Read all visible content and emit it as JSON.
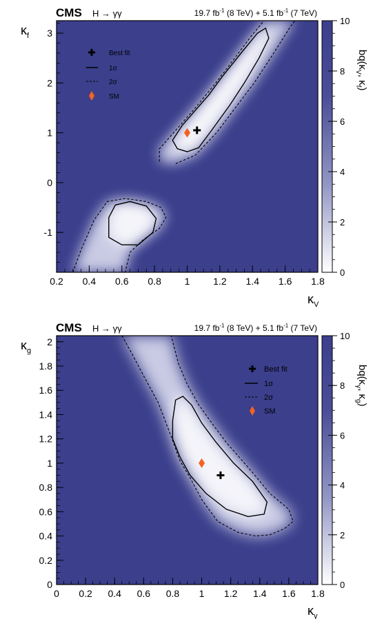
{
  "chart_data": [
    {
      "type": "heatmap",
      "experiment": "CMS",
      "process": "H → γγ",
      "lumi": {
        "a_lumi": "19.7",
        "a_unit": "fb",
        "a_exp": "-1",
        "a_energy": "(8 TeV) +",
        "b_lumi": "5.1",
        "b_unit": "fb",
        "b_exp": "-1",
        "b_energy": "(7 TeV)"
      },
      "xlabel": {
        "base": "κ",
        "sub": "V"
      },
      "ylabel": {
        "base": "κ",
        "sub": "f"
      },
      "zlabel": "bq(κV, κf)",
      "zlabel_parts": {
        "pre": "bq(κ",
        "s1": "V",
        "mid": ", κ",
        "s2": "f",
        "post": ")"
      },
      "xlim": [
        0.2,
        1.8
      ],
      "ylim": [
        -1.8,
        3.25
      ],
      "zlim": [
        0,
        10
      ],
      "xticks": [
        "0.2",
        "0.4",
        "0.6",
        "0.8",
        "1",
        "1.2",
        "1.4",
        "1.6",
        "1.8"
      ],
      "yticks": [
        "-1",
        "0",
        "1",
        "2",
        "3"
      ],
      "zticks": [
        "0",
        "2",
        "4",
        "6",
        "8",
        "10"
      ],
      "best_fit": {
        "x": 1.06,
        "y": 1.05
      },
      "sm": {
        "x": 1.0,
        "y": 1.0
      },
      "legend": {
        "position": "top-left",
        "entries": [
          {
            "label": "Best fit",
            "symbol": "cross"
          },
          {
            "label": "1σ",
            "symbol": "solid"
          },
          {
            "label": "2σ",
            "symbol": "dashed"
          },
          {
            "label": "SM",
            "symbol": "diamond"
          }
        ]
      },
      "contours": {
        "sigma1": [
          [
            [
              1.48,
              3.1
            ],
            [
              1.43,
              3.0
            ],
            [
              1.33,
              2.6
            ],
            [
              1.22,
              2.15
            ],
            [
              1.13,
              1.75
            ],
            [
              1.05,
              1.45
            ],
            [
              0.97,
              1.15
            ],
            [
              0.91,
              0.85
            ],
            [
              0.94,
              0.68
            ],
            [
              1.0,
              0.62
            ],
            [
              1.07,
              0.7
            ],
            [
              1.15,
              1.05
            ],
            [
              1.26,
              1.55
            ],
            [
              1.35,
              2.0
            ],
            [
              1.44,
              2.5
            ],
            [
              1.5,
              2.9
            ]
          ],
          [
            [
              0.56,
              -0.45
            ],
            [
              0.52,
              -0.7
            ],
            [
              0.52,
              -1.1
            ],
            [
              0.6,
              -1.25
            ],
            [
              0.7,
              -1.25
            ],
            [
              0.79,
              -1.0
            ],
            [
              0.81,
              -0.72
            ],
            [
              0.75,
              -0.47
            ],
            [
              0.65,
              -0.38
            ]
          ]
        ],
        "sigma2": [
          [
            [
              0.83,
              0.42
            ],
            [
              0.83,
              0.68
            ],
            [
              0.93,
              1.05
            ],
            [
              1.05,
              1.5
            ],
            [
              1.17,
              1.98
            ],
            [
              1.28,
              2.45
            ],
            [
              1.39,
              2.93
            ],
            [
              1.47,
              3.25
            ]
          ],
          [
            [
              0.93,
              0.38
            ],
            [
              1.05,
              0.55
            ],
            [
              1.18,
              1.0
            ],
            [
              1.29,
              1.48
            ],
            [
              1.41,
              2.0
            ],
            [
              1.52,
              2.55
            ],
            [
              1.63,
              3.12
            ],
            [
              1.66,
              3.25
            ]
          ],
          [
            [
              0.3,
              -1.8
            ],
            [
              0.35,
              -1.35
            ],
            [
              0.43,
              -0.75
            ],
            [
              0.51,
              -0.38
            ],
            [
              0.62,
              -0.32
            ],
            [
              0.75,
              -0.38
            ],
            [
              0.84,
              -0.5
            ],
            [
              0.87,
              -0.7
            ],
            [
              0.83,
              -0.92
            ],
            [
              0.73,
              -1.15
            ],
            [
              0.65,
              -1.4
            ],
            [
              0.62,
              -1.8
            ]
          ]
        ]
      }
    },
    {
      "type": "heatmap",
      "experiment": "CMS",
      "process": "H → γγ",
      "lumi": {
        "a_lumi": "19.7",
        "a_unit": "fb",
        "a_exp": "-1",
        "a_energy": "(8 TeV) +",
        "b_lumi": "5.1",
        "b_unit": "fb",
        "b_exp": "-1",
        "b_energy": "(7 TeV)"
      },
      "xlabel": {
        "base": "κ",
        "sub": "γ"
      },
      "ylabel": {
        "base": "κ",
        "sub": "g"
      },
      "zlabel": "bq(κγ, κg)",
      "zlabel_parts": {
        "pre": "bq(κ",
        "s1": "γ",
        "mid": ", κ",
        "s2": "g",
        "post": ")"
      },
      "xlim": [
        0,
        1.8
      ],
      "ylim": [
        0,
        2.05
      ],
      "zlim": [
        0,
        10
      ],
      "xticks": [
        "0",
        "0.2",
        "0.4",
        "0.6",
        "0.8",
        "1",
        "1.2",
        "1.4",
        "1.6",
        "1.8"
      ],
      "yticks": [
        "0",
        "0.2",
        "0.4",
        "0.6",
        "0.8",
        "1",
        "1.2",
        "1.4",
        "1.6",
        "1.8",
        "2"
      ],
      "zticks": [
        "0",
        "2",
        "4",
        "6",
        "8",
        "10"
      ],
      "best_fit": {
        "x": 1.13,
        "y": 0.9
      },
      "sm": {
        "x": 1.0,
        "y": 1.0
      },
      "legend": {
        "position": "top-right",
        "entries": [
          {
            "label": "Best fit",
            "symbol": "cross"
          },
          {
            "label": "1σ",
            "symbol": "solid"
          },
          {
            "label": "2σ",
            "symbol": "dashed"
          },
          {
            "label": "SM",
            "symbol": "diamond"
          }
        ]
      },
      "contours": {
        "sigma1": [
          [
            [
              0.8,
              1.35
            ],
            [
              0.82,
              1.52
            ],
            [
              0.87,
              1.55
            ],
            [
              0.93,
              1.48
            ],
            [
              1.0,
              1.33
            ],
            [
              1.1,
              1.17
            ],
            [
              1.22,
              1.0
            ],
            [
              1.35,
              0.85
            ],
            [
              1.45,
              0.68
            ],
            [
              1.43,
              0.58
            ],
            [
              1.32,
              0.56
            ],
            [
              1.17,
              0.62
            ],
            [
              1.03,
              0.75
            ],
            [
              0.92,
              0.9
            ],
            [
              0.85,
              1.05
            ],
            [
              0.8,
              1.2
            ]
          ]
        ],
        "sigma2": [
          [
            [
              0.45,
              2.05
            ],
            [
              0.52,
              1.9
            ],
            [
              0.6,
              1.72
            ],
            [
              0.7,
              1.5
            ],
            [
              0.79,
              1.22
            ],
            [
              0.85,
              1.02
            ],
            [
              0.92,
              0.88
            ],
            [
              1.0,
              0.7
            ],
            [
              1.11,
              0.52
            ],
            [
              1.25,
              0.43
            ],
            [
              1.37,
              0.4
            ],
            [
              1.47,
              0.41
            ],
            [
              1.57,
              0.46
            ],
            [
              1.63,
              0.52
            ],
            [
              1.6,
              0.62
            ],
            [
              1.55,
              0.67
            ],
            [
              1.47,
              0.75
            ],
            [
              1.38,
              0.88
            ],
            [
              1.28,
              1.02
            ],
            [
              1.17,
              1.17
            ],
            [
              1.07,
              1.33
            ],
            [
              0.98,
              1.48
            ],
            [
              0.9,
              1.65
            ],
            [
              0.84,
              1.82
            ],
            [
              0.79,
              2.05
            ]
          ]
        ]
      }
    }
  ],
  "colors": {
    "background": "#3b3f8c",
    "minimum": "#ffffff",
    "sm_marker": "#f26322",
    "frame": "#000000"
  }
}
